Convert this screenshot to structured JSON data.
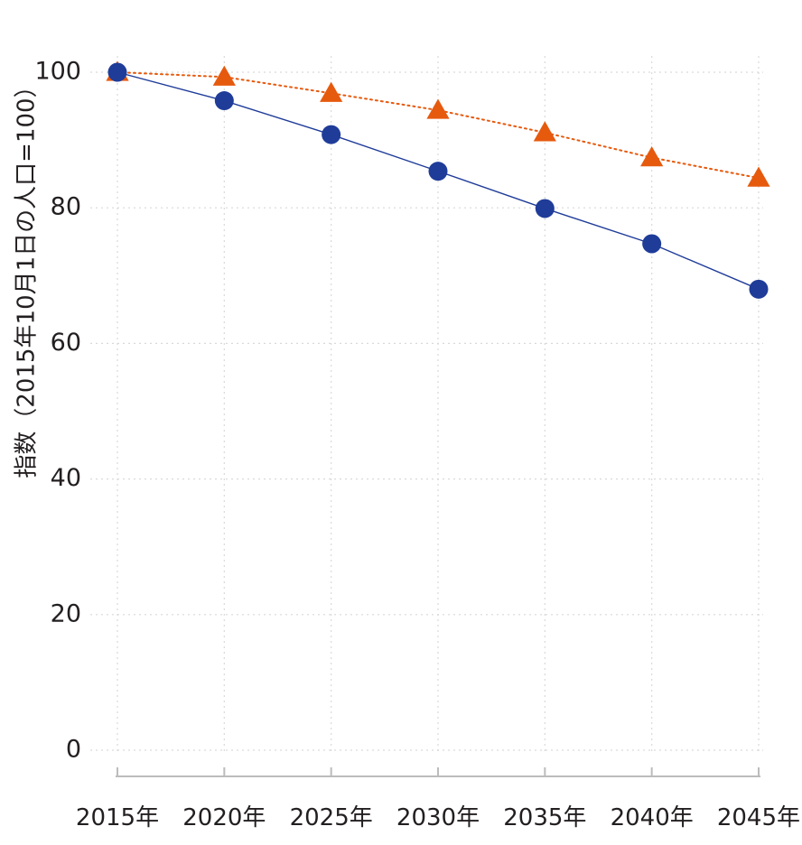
{
  "chart_data": {
    "type": "line",
    "title": "",
    "xlabel": "",
    "ylabel": "指数（2015年10月1日の人口=100）",
    "categories": [
      "2015年",
      "2020年",
      "2025年",
      "2030年",
      "2035年",
      "2040年",
      "2045年"
    ],
    "ylim": [
      0,
      100
    ],
    "yticks": [
      0,
      20,
      40,
      60,
      80,
      100
    ],
    "grid": true,
    "legend": "none",
    "series": [
      {
        "values": [
          100,
          95.8,
          90.8,
          85.4,
          79.9,
          74.7,
          68.0
        ],
        "color": "#1f3c99",
        "marker": "circle",
        "line_style": "solid"
      },
      {
        "values": [
          100,
          99.3,
          96.9,
          94.4,
          91.1,
          87.4,
          84.4
        ],
        "color": "#e65a0e",
        "marker": "triangle",
        "line_style": "dotted"
      }
    ]
  }
}
